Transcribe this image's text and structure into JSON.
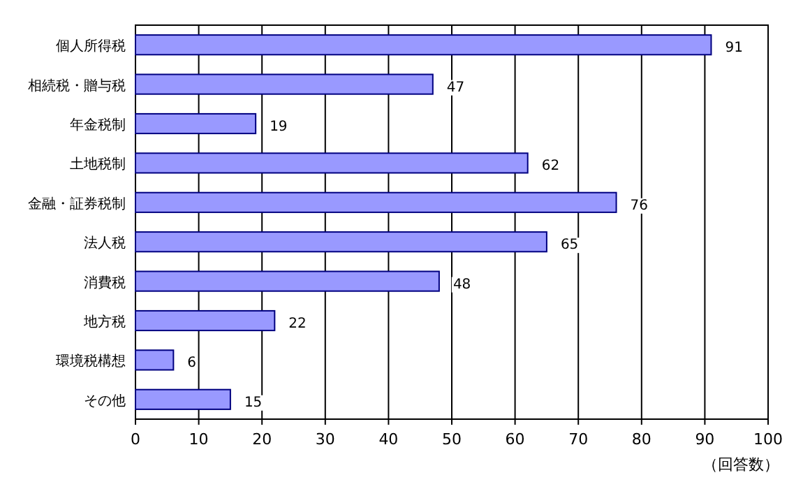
{
  "chart_data": {
    "type": "bar",
    "orientation": "horizontal",
    "categories": [
      "個人所得税",
      "相続税・贈与税",
      "年金税制",
      "土地税制",
      "金融・証券税制",
      "法人税",
      "消費税",
      "地方税",
      "環境税構想",
      "その他"
    ],
    "values": [
      91,
      47,
      19,
      62,
      76,
      65,
      48,
      22,
      6,
      15
    ],
    "color": "#9999ff",
    "xlim": [
      0,
      100
    ],
    "xticks": [
      0,
      10,
      20,
      30,
      40,
      50,
      60,
      70,
      80,
      90,
      100
    ],
    "xlabel": "（回答数）",
    "grid": "x",
    "data_labels": true
  }
}
